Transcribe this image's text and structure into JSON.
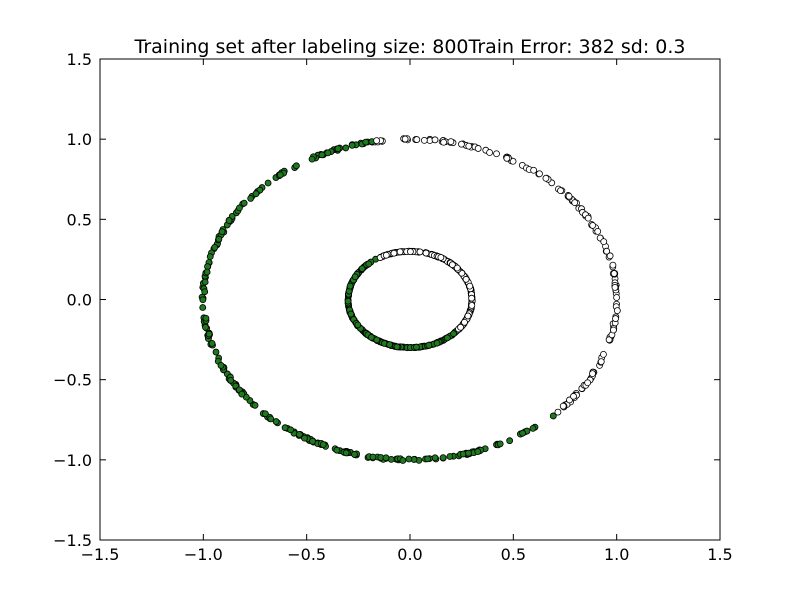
{
  "chart_data": {
    "type": "scatter",
    "title": "Training set after labeling size: 800Train Error: 382 sd: 0.3",
    "xlabel": "",
    "ylabel": "",
    "xlim": [
      -1.5,
      1.5
    ],
    "ylim": [
      -1.5,
      1.5
    ],
    "xticks": [
      "−1.5",
      "−1.0",
      "−0.5",
      "0.0",
      "0.5",
      "1.0",
      "1.5"
    ],
    "yticks": [
      "1.5",
      "1.0",
      "0.5",
      "0.0",
      "−0.5",
      "−1.0",
      "−1.5"
    ],
    "grid": false,
    "legend": "none",
    "colors": {
      "green": "#1f7a1f",
      "white": "#ffffff",
      "edge": "#000000"
    },
    "series": [
      {
        "shape": "circle",
        "radius": 1.0,
        "points": 400,
        "white_angle_ranges_deg": [
          [
            -45,
            100
          ]
        ],
        "green_angle_ranges_deg": [
          [
            100,
            315
          ]
        ],
        "color": "#1f7a1f"
      },
      {
        "shape": "circle",
        "radius": 0.3,
        "points": 400,
        "white_angle_ranges_deg": [
          [
            -40,
            120
          ]
        ],
        "green_angle_ranges_deg": [
          [
            120,
            320
          ]
        ],
        "color": "#1f7a1f"
      }
    ]
  }
}
